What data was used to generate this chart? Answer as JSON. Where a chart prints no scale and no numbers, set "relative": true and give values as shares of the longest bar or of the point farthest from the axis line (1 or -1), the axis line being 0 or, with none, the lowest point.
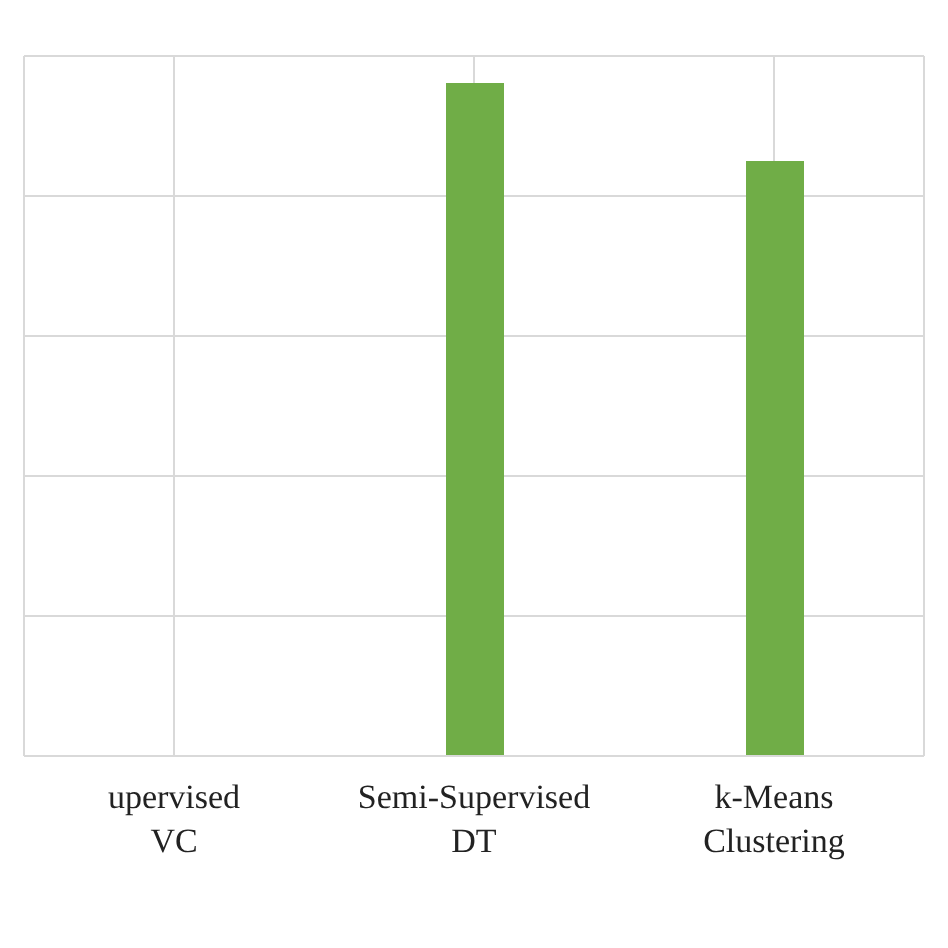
{
  "chart_data": {
    "type": "bar",
    "relative": true,
    "categories": [
      "upervised VC",
      "Semi-Supervised DT",
      "k-Means Clustering"
    ],
    "values": [
      null,
      1,
      0.884
    ],
    "color": "#70ad47",
    "grid": true
  }
}
